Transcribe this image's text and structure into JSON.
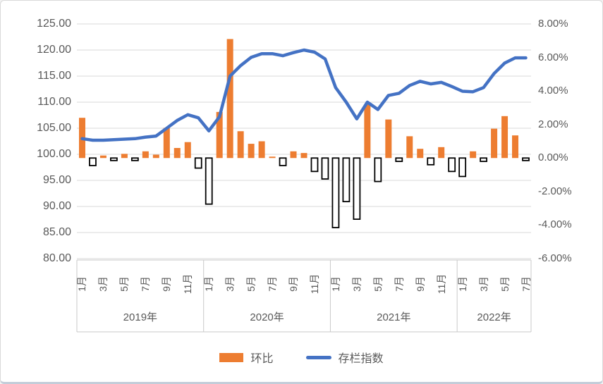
{
  "chart_data": {
    "type": "combo-bar-line",
    "title": "",
    "grid": true,
    "legend_position": "bottom",
    "legend": [
      {
        "label": "环比",
        "type": "bar",
        "color": "#ED7D31"
      },
      {
        "label": "存栏指数",
        "type": "line",
        "color": "#4472C4"
      }
    ],
    "colors": {
      "bar_positive": "#ED7D31",
      "bar_negative_fill": "#FFFFFF",
      "bar_negative_border": "#000000",
      "line": "#4472C4",
      "gridline": "#D9D9D9",
      "axis_line": "#C9C9C9",
      "axis_text": "#595959"
    },
    "left_axis": {
      "min": 80,
      "max": 125,
      "step": 5,
      "labels": [
        "125.00",
        "120.00",
        "115.00",
        "110.00",
        "105.00",
        "100.00",
        "95.00",
        "90.00",
        "85.00",
        "80.00"
      ]
    },
    "right_axis": {
      "min": -6,
      "max": 8,
      "step": 2,
      "labels": [
        "8.00%",
        "6.00%",
        "4.00%",
        "2.00%",
        "0.00%",
        "-2.00%",
        "-4.00%",
        "-6.00%"
      ]
    },
    "series_names": {
      "bars": "环比",
      "line": "存栏指数"
    },
    "years": [
      {
        "label": "2019年",
        "tick_labels": [
          "1月",
          "3月",
          "5月",
          "7月",
          "9月",
          "11月"
        ],
        "bar_values": [
          2.4,
          -0.45,
          0.15,
          -0.15,
          0.25,
          -0.15,
          0.4,
          0.2,
          1.8,
          0.6,
          0.95,
          -0.6
        ],
        "line_values": [
          103.0,
          102.7,
          102.7,
          102.8,
          102.9,
          103.0,
          103.3,
          103.5,
          105.0,
          106.5,
          107.6,
          107.0
        ]
      },
      {
        "label": "2020年",
        "tick_labels": [
          "1月",
          "3月",
          "5月",
          "7月",
          "9月",
          "11月"
        ],
        "bar_values": [
          -2.75,
          2.75,
          7.1,
          1.6,
          0.85,
          1.0,
          0.05,
          -0.45,
          0.4,
          0.3,
          -0.8,
          -1.25
        ],
        "line_values": [
          104.5,
          107.2,
          115.0,
          117.0,
          118.6,
          119.3,
          119.3,
          118.9,
          119.5,
          120.0,
          119.6,
          118.3
        ]
      },
      {
        "label": "2021年",
        "tick_labels": [
          "1月",
          "3月",
          "5月",
          "7月",
          "9月",
          "11月"
        ],
        "bar_values": [
          -4.15,
          -2.6,
          -3.65,
          3.2,
          -1.4,
          2.3,
          -0.2,
          1.3,
          0.55,
          -0.4,
          0.65,
          -0.8
        ],
        "line_values": [
          112.8,
          110.0,
          106.8,
          110.0,
          108.6,
          111.3,
          111.7,
          113.2,
          114.0,
          113.5,
          113.8,
          113.0
        ]
      },
      {
        "label": "2022年",
        "tick_labels": [
          "1月",
          "3月",
          "5月",
          "7月"
        ],
        "bar_values": [
          -1.1,
          0.4,
          -0.2,
          1.75,
          2.5,
          1.35,
          -0.15
        ],
        "line_values": [
          112.1,
          112.0,
          112.8,
          115.5,
          117.5,
          118.5,
          118.5
        ]
      }
    ]
  }
}
